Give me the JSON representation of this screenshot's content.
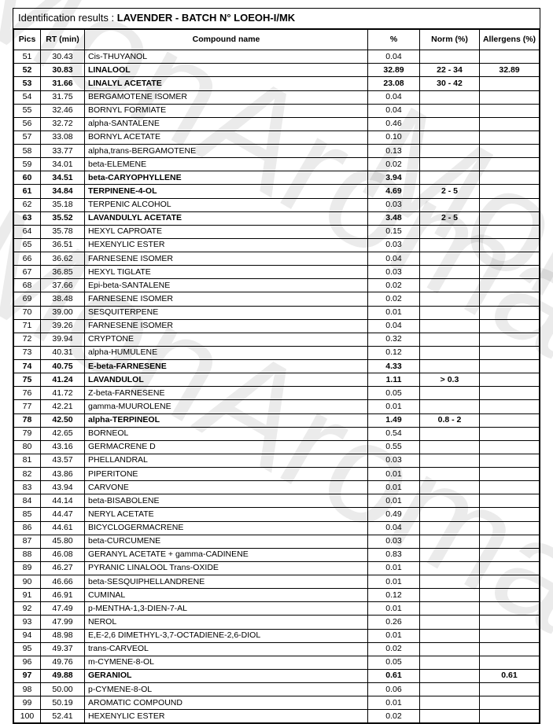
{
  "title_label": "Identification results : ",
  "title_value": "LAVENDER - BATCH N° LOEOH-I/MK",
  "watermark_text": "MonAroma",
  "headers": {
    "pics": "Pics",
    "rt": "RT (min)",
    "name": "Compound name",
    "pct": "%",
    "norm": "Norm (%)",
    "allergens": "Allergens (%)"
  },
  "rows": [
    {
      "pics": "51",
      "rt": "30.43",
      "name": "Cis-THUYANOL",
      "pct": "0.04",
      "norm": "",
      "all": "",
      "bold": false
    },
    {
      "pics": "52",
      "rt": "30.83",
      "name": "LINALOOL",
      "pct": "32.89",
      "norm": "22 - 34",
      "all": "32.89",
      "bold": true
    },
    {
      "pics": "53",
      "rt": "31.66",
      "name": "LINALYL ACETATE",
      "pct": "23.08",
      "norm": "30 - 42",
      "all": "",
      "bold": true
    },
    {
      "pics": "54",
      "rt": "31.75",
      "name": "BERGAMOTENE ISOMER",
      "pct": "0.04",
      "norm": "",
      "all": "",
      "bold": false
    },
    {
      "pics": "55",
      "rt": "32.46",
      "name": "BORNYL FORMIATE",
      "pct": "0.04",
      "norm": "",
      "all": "",
      "bold": false
    },
    {
      "pics": "56",
      "rt": "32.72",
      "name": "alpha-SANTALENE",
      "pct": "0.46",
      "norm": "",
      "all": "",
      "bold": false
    },
    {
      "pics": "57",
      "rt": "33.08",
      "name": "BORNYL ACETATE",
      "pct": "0.10",
      "norm": "",
      "all": "",
      "bold": false
    },
    {
      "pics": "58",
      "rt": "33.77",
      "name": "alpha,trans-BERGAMOTENE",
      "pct": "0.13",
      "norm": "",
      "all": "",
      "bold": false
    },
    {
      "pics": "59",
      "rt": "34.01",
      "name": "beta-ELEMENE",
      "pct": "0.02",
      "norm": "",
      "all": "",
      "bold": false
    },
    {
      "pics": "60",
      "rt": "34.51",
      "name": "beta-CARYOPHYLLENE",
      "pct": "3.94",
      "norm": "",
      "all": "",
      "bold": true
    },
    {
      "pics": "61",
      "rt": "34.84",
      "name": "TERPINENE-4-OL",
      "pct": "4.69",
      "norm": "2 - 5",
      "all": "",
      "bold": true
    },
    {
      "pics": "62",
      "rt": "35.18",
      "name": "TERPENIC ALCOHOL",
      "pct": "0.03",
      "norm": "",
      "all": "",
      "bold": false
    },
    {
      "pics": "63",
      "rt": "35.52",
      "name": "LAVANDULYL ACETATE",
      "pct": "3.48",
      "norm": "2 - 5",
      "all": "",
      "bold": true
    },
    {
      "pics": "64",
      "rt": "35.78",
      "name": "HEXYL CAPROATE",
      "pct": "0.15",
      "norm": "",
      "all": "",
      "bold": false
    },
    {
      "pics": "65",
      "rt": "36.51",
      "name": "HEXENYLIC ESTER",
      "pct": "0.03",
      "norm": "",
      "all": "",
      "bold": false
    },
    {
      "pics": "66",
      "rt": "36.62",
      "name": "FARNESENE ISOMER",
      "pct": "0.04",
      "norm": "",
      "all": "",
      "bold": false
    },
    {
      "pics": "67",
      "rt": "36.85",
      "name": "HEXYL TIGLATE",
      "pct": "0.03",
      "norm": "",
      "all": "",
      "bold": false
    },
    {
      "pics": "68",
      "rt": "37.66",
      "name": "Epi-beta-SANTALENE",
      "pct": "0.02",
      "norm": "",
      "all": "",
      "bold": false
    },
    {
      "pics": "69",
      "rt": "38.48",
      "name": "FARNESENE ISOMER",
      "pct": "0.02",
      "norm": "",
      "all": "",
      "bold": false
    },
    {
      "pics": "70",
      "rt": "39.00",
      "name": "SESQUITERPENE",
      "pct": "0.01",
      "norm": "",
      "all": "",
      "bold": false
    },
    {
      "pics": "71",
      "rt": "39.26",
      "name": "FARNESENE ISOMER",
      "pct": "0.04",
      "norm": "",
      "all": "",
      "bold": false
    },
    {
      "pics": "72",
      "rt": "39.94",
      "name": "CRYPTONE",
      "pct": "0.32",
      "norm": "",
      "all": "",
      "bold": false
    },
    {
      "pics": "73",
      "rt": "40.31",
      "name": "alpha-HUMULENE",
      "pct": "0.12",
      "norm": "",
      "all": "",
      "bold": false
    },
    {
      "pics": "74",
      "rt": "40.75",
      "name": "E-beta-FARNESENE",
      "pct": "4.33",
      "norm": "",
      "all": "",
      "bold": true
    },
    {
      "pics": "75",
      "rt": "41.24",
      "name": "LAVANDULOL",
      "pct": "1.11",
      "norm": "> 0.3",
      "all": "",
      "bold": true
    },
    {
      "pics": "76",
      "rt": "41.72",
      "name": "Z-beta-FARNESENE",
      "pct": "0.05",
      "norm": "",
      "all": "",
      "bold": false
    },
    {
      "pics": "77",
      "rt": "42.21",
      "name": "gamma-MUUROLENE",
      "pct": "0.01",
      "norm": "",
      "all": "",
      "bold": false
    },
    {
      "pics": "78",
      "rt": "42.50",
      "name": "alpha-TERPINEOL",
      "pct": "1.49",
      "norm": "0.8 - 2",
      "all": "",
      "bold": true
    },
    {
      "pics": "79",
      "rt": "42.65",
      "name": "BORNEOL",
      "pct": "0.54",
      "norm": "",
      "all": "",
      "bold": false
    },
    {
      "pics": "80",
      "rt": "43.16",
      "name": "GERMACRENE D",
      "pct": "0.55",
      "norm": "",
      "all": "",
      "bold": false
    },
    {
      "pics": "81",
      "rt": "43.57",
      "name": "PHELLANDRAL",
      "pct": "0.03",
      "norm": "",
      "all": "",
      "bold": false
    },
    {
      "pics": "82",
      "rt": "43.86",
      "name": "PIPERITONE",
      "pct": "0.01",
      "norm": "",
      "all": "",
      "bold": false
    },
    {
      "pics": "83",
      "rt": "43.94",
      "name": "CARVONE",
      "pct": "0.01",
      "norm": "",
      "all": "",
      "bold": false
    },
    {
      "pics": "84",
      "rt": "44.14",
      "name": "beta-BISABOLENE",
      "pct": "0.01",
      "norm": "",
      "all": "",
      "bold": false
    },
    {
      "pics": "85",
      "rt": "44.47",
      "name": "NERYL ACETATE",
      "pct": "0.49",
      "norm": "",
      "all": "",
      "bold": false
    },
    {
      "pics": "86",
      "rt": "44.61",
      "name": "BICYCLOGERMACRENE",
      "pct": "0.04",
      "norm": "",
      "all": "",
      "bold": false
    },
    {
      "pics": "87",
      "rt": "45.80",
      "name": "beta-CURCUMENE",
      "pct": "0.03",
      "norm": "",
      "all": "",
      "bold": false
    },
    {
      "pics": "88",
      "rt": "46.08",
      "name": "GERANYL ACETATE + gamma-CADINENE",
      "pct": "0.83",
      "norm": "",
      "all": "",
      "bold": false
    },
    {
      "pics": "89",
      "rt": "46.27",
      "name": "PYRANIC LINALOOL Trans-OXIDE",
      "pct": "0.01",
      "norm": "",
      "all": "",
      "bold": false
    },
    {
      "pics": "90",
      "rt": "46.66",
      "name": "beta-SESQUIPHELLANDRENE",
      "pct": "0.01",
      "norm": "",
      "all": "",
      "bold": false
    },
    {
      "pics": "91",
      "rt": "46.91",
      "name": "CUMINAL",
      "pct": "0.12",
      "norm": "",
      "all": "",
      "bold": false
    },
    {
      "pics": "92",
      "rt": "47.49",
      "name": "p-MENTHA-1,3-DIEN-7-AL",
      "pct": "0.01",
      "norm": "",
      "all": "",
      "bold": false
    },
    {
      "pics": "93",
      "rt": "47.99",
      "name": "NEROL",
      "pct": "0.26",
      "norm": "",
      "all": "",
      "bold": false
    },
    {
      "pics": "94",
      "rt": "48.98",
      "name": "E,E-2,6 DIMETHYL-3,7-OCTADIENE-2,6-DIOL",
      "pct": "0.01",
      "norm": "",
      "all": "",
      "bold": false
    },
    {
      "pics": "95",
      "rt": "49.37",
      "name": "trans-CARVEOL",
      "pct": "0.02",
      "norm": "",
      "all": "",
      "bold": false
    },
    {
      "pics": "96",
      "rt": "49.76",
      "name": "m-CYMENE-8-OL",
      "pct": "0.05",
      "norm": "",
      "all": "",
      "bold": false
    },
    {
      "pics": "97",
      "rt": "49.88",
      "name": "GERANIOL",
      "pct": "0.61",
      "norm": "",
      "all": "0.61",
      "bold": true
    },
    {
      "pics": "98",
      "rt": "50.00",
      "name": "p-CYMENE-8-OL",
      "pct": "0.06",
      "norm": "",
      "all": "",
      "bold": false
    },
    {
      "pics": "99",
      "rt": "50.19",
      "name": "AROMATIC COMPOUND",
      "pct": "0.01",
      "norm": "",
      "all": "",
      "bold": false
    },
    {
      "pics": "100",
      "rt": "52.41",
      "name": "HEXENYLIC ESTER",
      "pct": "0.02",
      "norm": "",
      "all": "",
      "bold": false
    }
  ]
}
